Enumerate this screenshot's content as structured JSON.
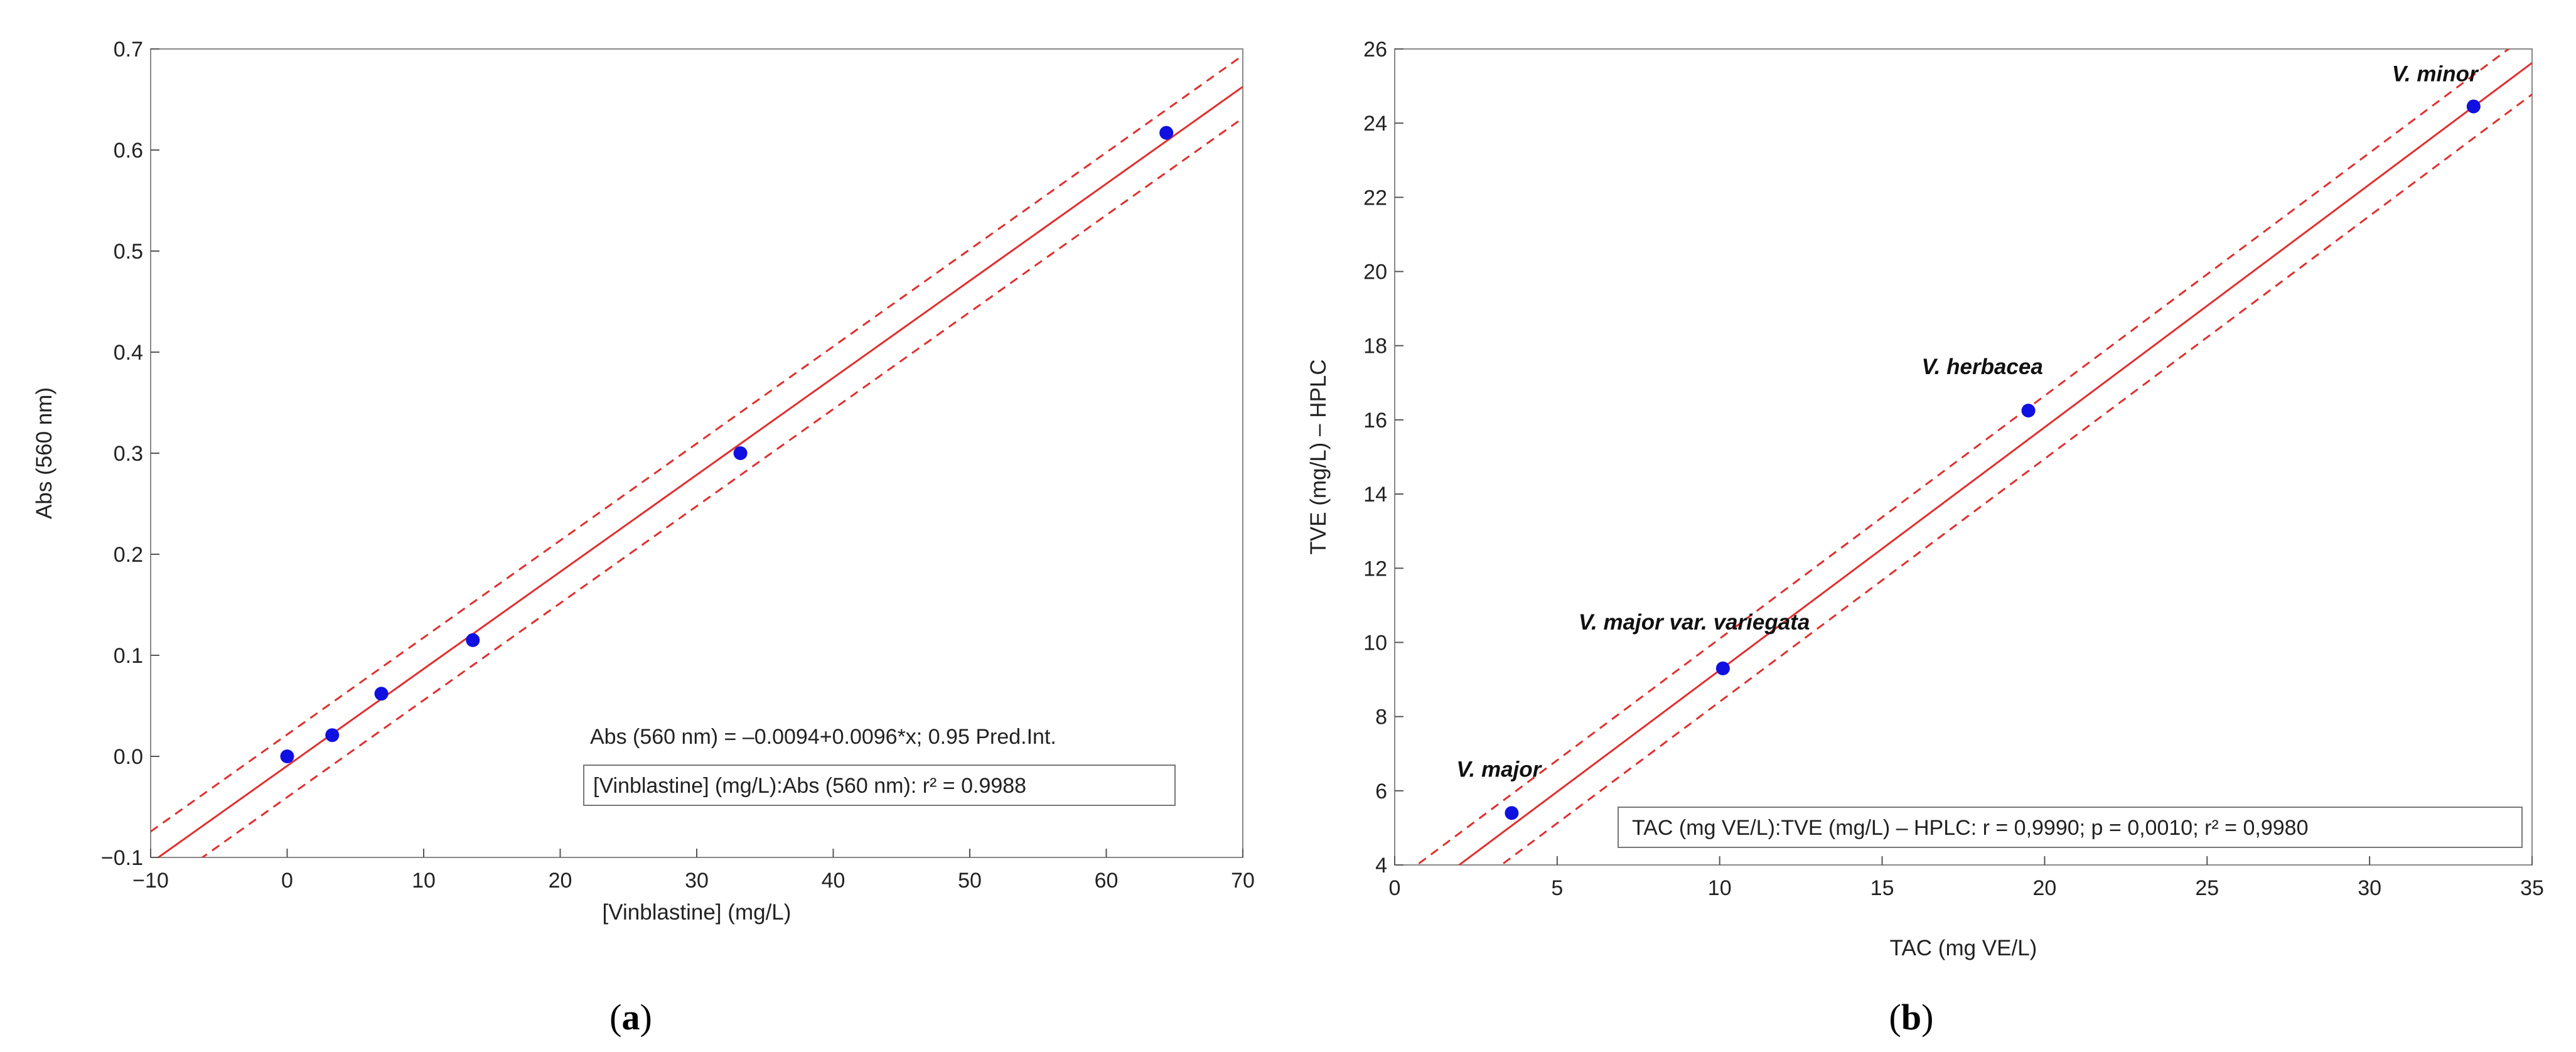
{
  "charts": {
    "a": {
      "panel_prefix": "(",
      "panel_letter": "a",
      "panel_suffix": ")",
      "equation": "Abs (560 nm) = –0.0094+0.0096*x; 0.95 Pred.Int.",
      "stats": "[Vinblastine] (mg/L):Abs (560 nm):  r² = 0.9988"
    },
    "b": {
      "panel_prefix": "(",
      "panel_letter": "b",
      "panel_suffix": ")",
      "stats": "TAC (mg VE/L):TVE (mg/L) – HPLC:    r = 0,9990; p = 0,0010; r² = 0,9980"
    }
  },
  "chart_data": [
    {
      "type": "scatter",
      "title": "",
      "xlabel": "[Vinblastine] (mg/L)",
      "ylabel": "Abs (560 nm)",
      "xlim": [
        -10,
        70
      ],
      "ylim": [
        -0.1,
        0.7
      ],
      "xticks": [
        -10,
        0,
        10,
        20,
        30,
        40,
        50,
        60,
        70
      ],
      "xtick_labels": [
        "−10",
        "0",
        "10",
        "20",
        "30",
        "40",
        "50",
        "60",
        "70"
      ],
      "yticks": [
        -0.1,
        0.0,
        0.1,
        0.2,
        0.3,
        0.4,
        0.5,
        0.6,
        0.7
      ],
      "ytick_labels": [
        "−0.1",
        "0.0",
        "0.1",
        "0.2",
        "0.3",
        "0.4",
        "0.5",
        "0.6",
        "0.7"
      ],
      "points": [
        {
          "x": 0,
          "y": 0.0
        },
        {
          "x": 3.3,
          "y": 0.021
        },
        {
          "x": 6.9,
          "y": 0.062
        },
        {
          "x": 13.6,
          "y": 0.115
        },
        {
          "x": 33.2,
          "y": 0.3
        },
        {
          "x": 64.4,
          "y": 0.617
        }
      ],
      "fit": {
        "intercept": -0.0094,
        "slope": 0.0096
      },
      "pred_band_offset": 0.031,
      "grid": false,
      "point_color": "#1010e0",
      "line_color": "#e03030"
    },
    {
      "type": "scatter",
      "title": "",
      "xlabel": "TAC (mg VE/L)",
      "ylabel": "TVE (mg/L) – HPLC",
      "xlim": [
        0,
        35
      ],
      "ylim": [
        4,
        26
      ],
      "xticks": [
        0,
        5,
        10,
        15,
        20,
        25,
        30,
        35
      ],
      "xtick_labels": [
        "0",
        "5",
        "10",
        "15",
        "20",
        "25",
        "30",
        "35"
      ],
      "yticks": [
        4,
        6,
        8,
        10,
        12,
        14,
        16,
        18,
        20,
        22,
        24,
        26
      ],
      "ytick_labels": [
        "4",
        "6",
        "8",
        "10",
        "12",
        "14",
        "16",
        "18",
        "20",
        "22",
        "24",
        "26"
      ],
      "points": [
        {
          "x": 3.6,
          "y": 5.4,
          "label": "V. major"
        },
        {
          "x": 10.1,
          "y": 9.3,
          "label": "V. major var. variegata"
        },
        {
          "x": 19.5,
          "y": 16.25,
          "label": "V. herbacea"
        },
        {
          "x": 33.2,
          "y": 24.45,
          "label": "V. minor"
        }
      ],
      "fit": {
        "intercept": 2.7,
        "slope": 0.655
      },
      "pred_band_offset": 0.85,
      "grid": false,
      "point_color": "#1010e0",
      "line_color": "#e03030"
    }
  ]
}
